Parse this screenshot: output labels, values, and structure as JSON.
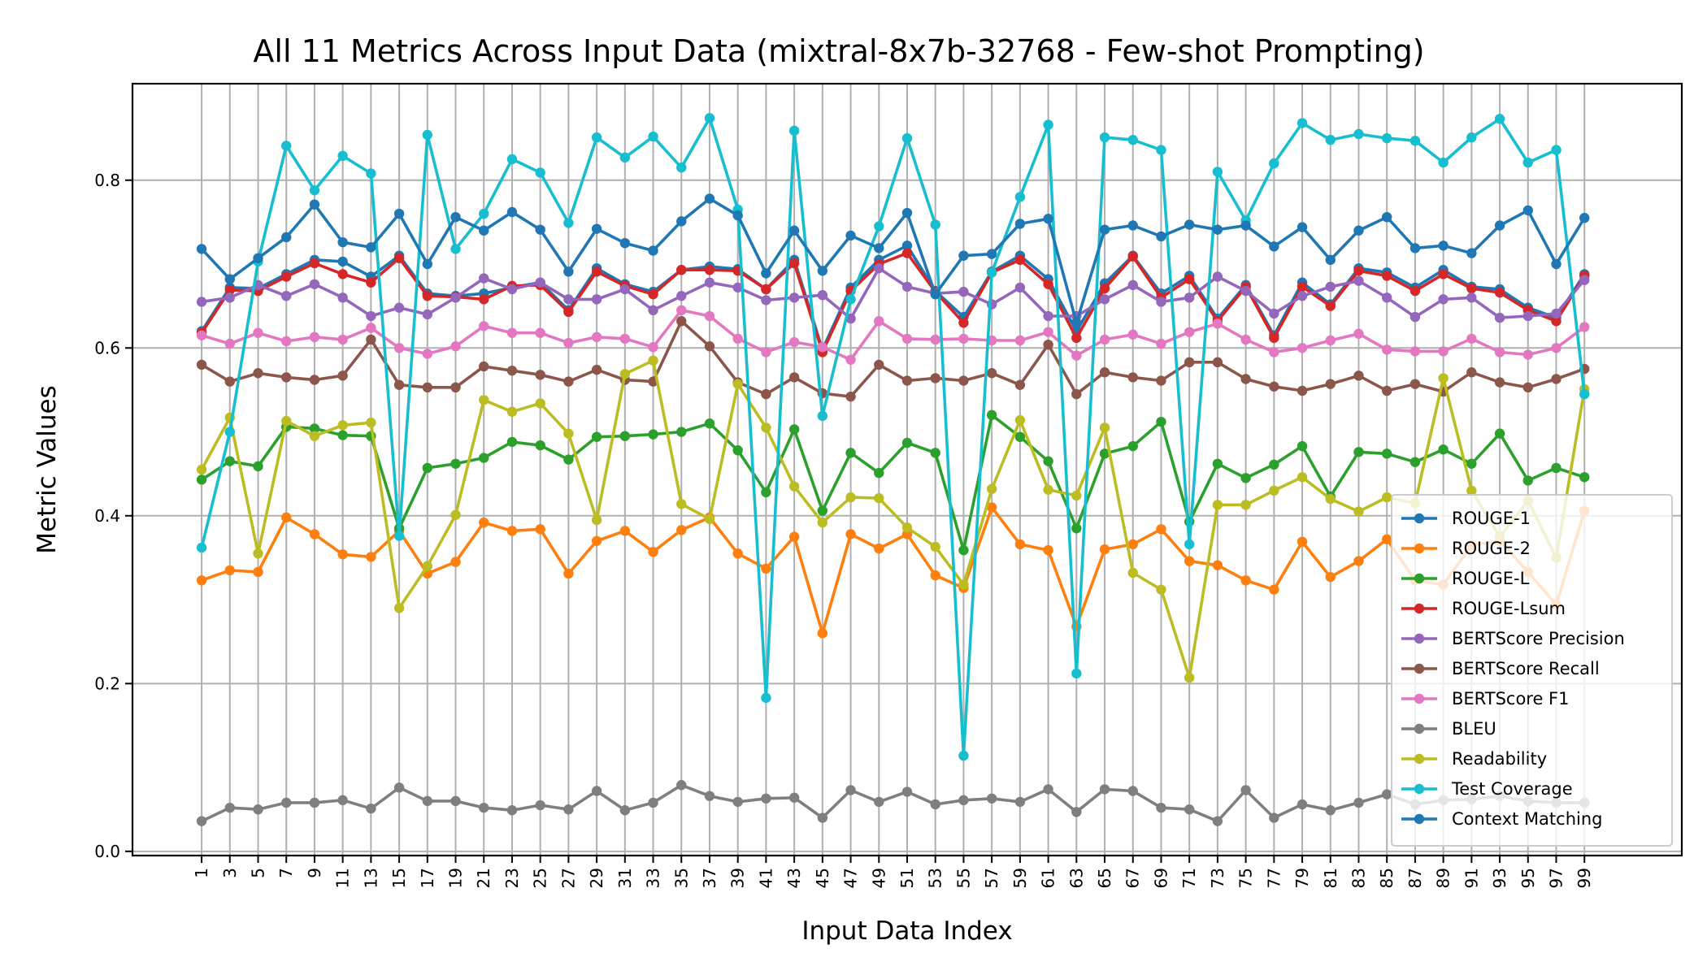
{
  "chart_data": {
    "type": "line",
    "title": "All 11 Metrics Across Input Data (mixtral-8x7b-32768 - Few-shot Prompting)",
    "xlabel": "Input Data Index",
    "ylabel": "Metric Values",
    "x": [
      1,
      3,
      5,
      7,
      9,
      11,
      13,
      15,
      17,
      19,
      21,
      23,
      25,
      27,
      29,
      31,
      33,
      35,
      37,
      39,
      41,
      43,
      45,
      47,
      49,
      51,
      53,
      55,
      57,
      59,
      61,
      63,
      65,
      67,
      69,
      71,
      73,
      75,
      77,
      79,
      81,
      83,
      85,
      87,
      89,
      91,
      93,
      95,
      97,
      99
    ],
    "x_tick_labels": [
      "1",
      "3",
      "5",
      "7",
      "9",
      "11",
      "13",
      "15",
      "17",
      "19",
      "21",
      "23",
      "25",
      "27",
      "29",
      "31",
      "33",
      "35",
      "37",
      "39",
      "41",
      "43",
      "45",
      "47",
      "49",
      "51",
      "53",
      "55",
      "57",
      "59",
      "61",
      "63",
      "65",
      "67",
      "69",
      "71",
      "73",
      "75",
      "77",
      "79",
      "81",
      "83",
      "85",
      "87",
      "89",
      "91",
      "93",
      "95",
      "97",
      "99"
    ],
    "y_ticks": [
      0.0,
      0.2,
      0.4,
      0.6,
      0.8
    ],
    "y_tick_labels": [
      "0.0",
      "0.2",
      "0.4",
      "0.6",
      "0.8"
    ],
    "xlim": [
      -3.9,
      105.9
    ],
    "ylim": [
      -0.005,
      0.915
    ],
    "grid": true,
    "legend_position": "lower-right",
    "series": [
      {
        "name": "ROUGE-1",
        "color": "#1f77b4",
        "values": [
          0.62,
          0.672,
          0.671,
          0.688,
          0.705,
          0.703,
          0.685,
          0.71,
          0.665,
          0.662,
          0.665,
          0.672,
          0.678,
          0.645,
          0.695,
          0.676,
          0.667,
          0.693,
          0.697,
          0.694,
          0.67,
          0.705,
          0.598,
          0.672,
          0.705,
          0.722,
          0.668,
          0.637,
          0.691,
          0.71,
          0.682,
          0.62,
          0.677,
          0.71,
          0.665,
          0.686,
          0.635,
          0.675,
          0.615,
          0.678,
          0.652,
          0.695,
          0.69,
          0.672,
          0.693,
          0.673,
          0.67,
          0.648,
          0.636,
          0.688
        ]
      },
      {
        "name": "ROUGE-2",
        "color": "#ff7f0e",
        "values": [
          0.323,
          0.335,
          0.333,
          0.398,
          0.378,
          0.354,
          0.351,
          0.382,
          0.331,
          0.345,
          0.392,
          0.382,
          0.384,
          0.331,
          0.37,
          0.382,
          0.357,
          0.383,
          0.398,
          0.355,
          0.337,
          0.375,
          0.26,
          0.378,
          0.361,
          0.378,
          0.329,
          0.314,
          0.41,
          0.366,
          0.359,
          0.268,
          0.36,
          0.366,
          0.384,
          0.346,
          0.341,
          0.323,
          0.312,
          0.369,
          0.327,
          0.346,
          0.372,
          0.323,
          0.318,
          0.365,
          0.37,
          0.333,
          0.294,
          0.406
        ]
      },
      {
        "name": "ROUGE-L",
        "color": "#2ca02c",
        "values": [
          0.443,
          0.465,
          0.459,
          0.506,
          0.504,
          0.496,
          0.495,
          0.385,
          0.457,
          0.462,
          0.469,
          0.488,
          0.484,
          0.467,
          0.494,
          0.495,
          0.497,
          0.5,
          0.51,
          0.478,
          0.428,
          0.503,
          0.406,
          0.475,
          0.451,
          0.487,
          0.475,
          0.359,
          0.52,
          0.494,
          0.465,
          0.385,
          0.474,
          0.483,
          0.512,
          0.393,
          0.462,
          0.445,
          0.461,
          0.483,
          0.423,
          0.476,
          0.474,
          0.464,
          0.479,
          0.462,
          0.498,
          0.442,
          0.457,
          0.446
        ]
      },
      {
        "name": "ROUGE-Lsum",
        "color": "#d62728",
        "values": [
          0.618,
          0.669,
          0.668,
          0.685,
          0.701,
          0.688,
          0.678,
          0.707,
          0.662,
          0.661,
          0.658,
          0.674,
          0.675,
          0.643,
          0.691,
          0.674,
          0.664,
          0.693,
          0.693,
          0.692,
          0.67,
          0.701,
          0.595,
          0.668,
          0.7,
          0.713,
          0.667,
          0.63,
          0.69,
          0.705,
          0.676,
          0.612,
          0.671,
          0.709,
          0.66,
          0.682,
          0.632,
          0.673,
          0.612,
          0.673,
          0.65,
          0.692,
          0.686,
          0.668,
          0.688,
          0.671,
          0.666,
          0.645,
          0.632,
          0.686
        ]
      },
      {
        "name": "BERTScore Precision",
        "color": "#9467bd",
        "values": [
          0.655,
          0.66,
          0.675,
          0.662,
          0.676,
          0.66,
          0.638,
          0.648,
          0.64,
          0.66,
          0.683,
          0.67,
          0.678,
          0.658,
          0.658,
          0.67,
          0.645,
          0.662,
          0.678,
          0.672,
          0.657,
          0.66,
          0.663,
          0.635,
          0.695,
          0.673,
          0.665,
          0.667,
          0.652,
          0.672,
          0.638,
          0.638,
          0.658,
          0.675,
          0.655,
          0.66,
          0.685,
          0.668,
          0.641,
          0.662,
          0.673,
          0.68,
          0.66,
          0.637,
          0.658,
          0.66,
          0.636,
          0.638,
          0.641,
          0.681
        ]
      },
      {
        "name": "BERTScore Recall",
        "color": "#8c564b",
        "values": [
          0.58,
          0.56,
          0.57,
          0.565,
          0.562,
          0.567,
          0.61,
          0.556,
          0.553,
          0.553,
          0.578,
          0.573,
          0.568,
          0.56,
          0.574,
          0.562,
          0.56,
          0.632,
          0.602,
          0.559,
          0.545,
          0.565,
          0.546,
          0.542,
          0.58,
          0.561,
          0.564,
          0.561,
          0.57,
          0.556,
          0.604,
          0.545,
          0.571,
          0.565,
          0.561,
          0.583,
          0.583,
          0.563,
          0.554,
          0.549,
          0.557,
          0.567,
          0.549,
          0.557,
          0.548,
          0.571,
          0.559,
          0.553,
          0.563,
          0.575
        ]
      },
      {
        "name": "BERTScore F1",
        "color": "#e377c2",
        "values": [
          0.615,
          0.605,
          0.618,
          0.608,
          0.613,
          0.61,
          0.624,
          0.6,
          0.593,
          0.602,
          0.626,
          0.618,
          0.618,
          0.606,
          0.613,
          0.611,
          0.601,
          0.645,
          0.638,
          0.611,
          0.595,
          0.607,
          0.601,
          0.586,
          0.632,
          0.611,
          0.61,
          0.611,
          0.609,
          0.609,
          0.619,
          0.591,
          0.61,
          0.616,
          0.605,
          0.619,
          0.629,
          0.61,
          0.595,
          0.6,
          0.609,
          0.617,
          0.598,
          0.596,
          0.596,
          0.611,
          0.595,
          0.592,
          0.6,
          0.625
        ]
      },
      {
        "name": "BLEU",
        "color": "#7f7f7f",
        "values": [
          0.036,
          0.052,
          0.05,
          0.058,
          0.058,
          0.061,
          0.051,
          0.076,
          0.06,
          0.06,
          0.052,
          0.049,
          0.055,
          0.05,
          0.072,
          0.049,
          0.058,
          0.079,
          0.066,
          0.059,
          0.063,
          0.064,
          0.04,
          0.073,
          0.059,
          0.071,
          0.056,
          0.061,
          0.063,
          0.059,
          0.074,
          0.047,
          0.074,
          0.072,
          0.052,
          0.05,
          0.036,
          0.073,
          0.04,
          0.056,
          0.049,
          0.058,
          0.068,
          0.056,
          0.061,
          0.062,
          0.066,
          0.06,
          0.058,
          0.058
        ]
      },
      {
        "name": "Readability",
        "color": "#bcbd22",
        "values": [
          0.455,
          0.517,
          0.355,
          0.513,
          0.495,
          0.508,
          0.511,
          0.29,
          0.34,
          0.401,
          0.538,
          0.524,
          0.534,
          0.498,
          0.395,
          0.569,
          0.585,
          0.414,
          0.396,
          0.557,
          0.505,
          0.435,
          0.392,
          0.422,
          0.421,
          0.386,
          0.363,
          0.318,
          0.432,
          0.514,
          0.431,
          0.424,
          0.505,
          0.332,
          0.312,
          0.207,
          0.413,
          0.413,
          0.43,
          0.446,
          0.42,
          0.405,
          0.422,
          0.415,
          0.564,
          0.43,
          0.375,
          0.418,
          0.35,
          0.551
        ]
      },
      {
        "name": "Test Coverage",
        "color": "#17becf",
        "values": [
          0.362,
          0.5,
          0.703,
          0.841,
          0.788,
          0.829,
          0.808,
          0.376,
          0.854,
          0.718,
          0.76,
          0.825,
          0.809,
          0.749,
          0.851,
          0.827,
          0.852,
          0.815,
          0.874,
          0.765,
          0.183,
          0.859,
          0.519,
          0.658,
          0.745,
          0.85,
          0.747,
          0.114,
          0.69,
          0.78,
          0.866,
          0.212,
          0.851,
          0.848,
          0.836,
          0.366,
          0.81,
          0.752,
          0.82,
          0.868,
          0.848,
          0.855,
          0.85,
          0.847,
          0.821,
          0.851,
          0.873,
          0.821,
          0.836,
          0.545
        ]
      },
      {
        "name": "Context Matching",
        "color": "#1f77b4",
        "values": [
          0.718,
          0.682,
          0.707,
          0.732,
          0.771,
          0.726,
          0.72,
          0.76,
          0.7,
          0.756,
          0.74,
          0.762,
          0.741,
          0.691,
          0.742,
          0.725,
          0.716,
          0.751,
          0.778,
          0.758,
          0.689,
          0.74,
          0.692,
          0.734,
          0.719,
          0.761,
          0.664,
          0.71,
          0.712,
          0.748,
          0.754,
          0.63,
          0.741,
          0.746,
          0.733,
          0.747,
          0.741,
          0.746,
          0.721,
          0.744,
          0.705,
          0.74,
          0.756,
          0.719,
          0.722,
          0.713,
          0.746,
          0.764,
          0.7,
          0.755
        ]
      }
    ]
  }
}
